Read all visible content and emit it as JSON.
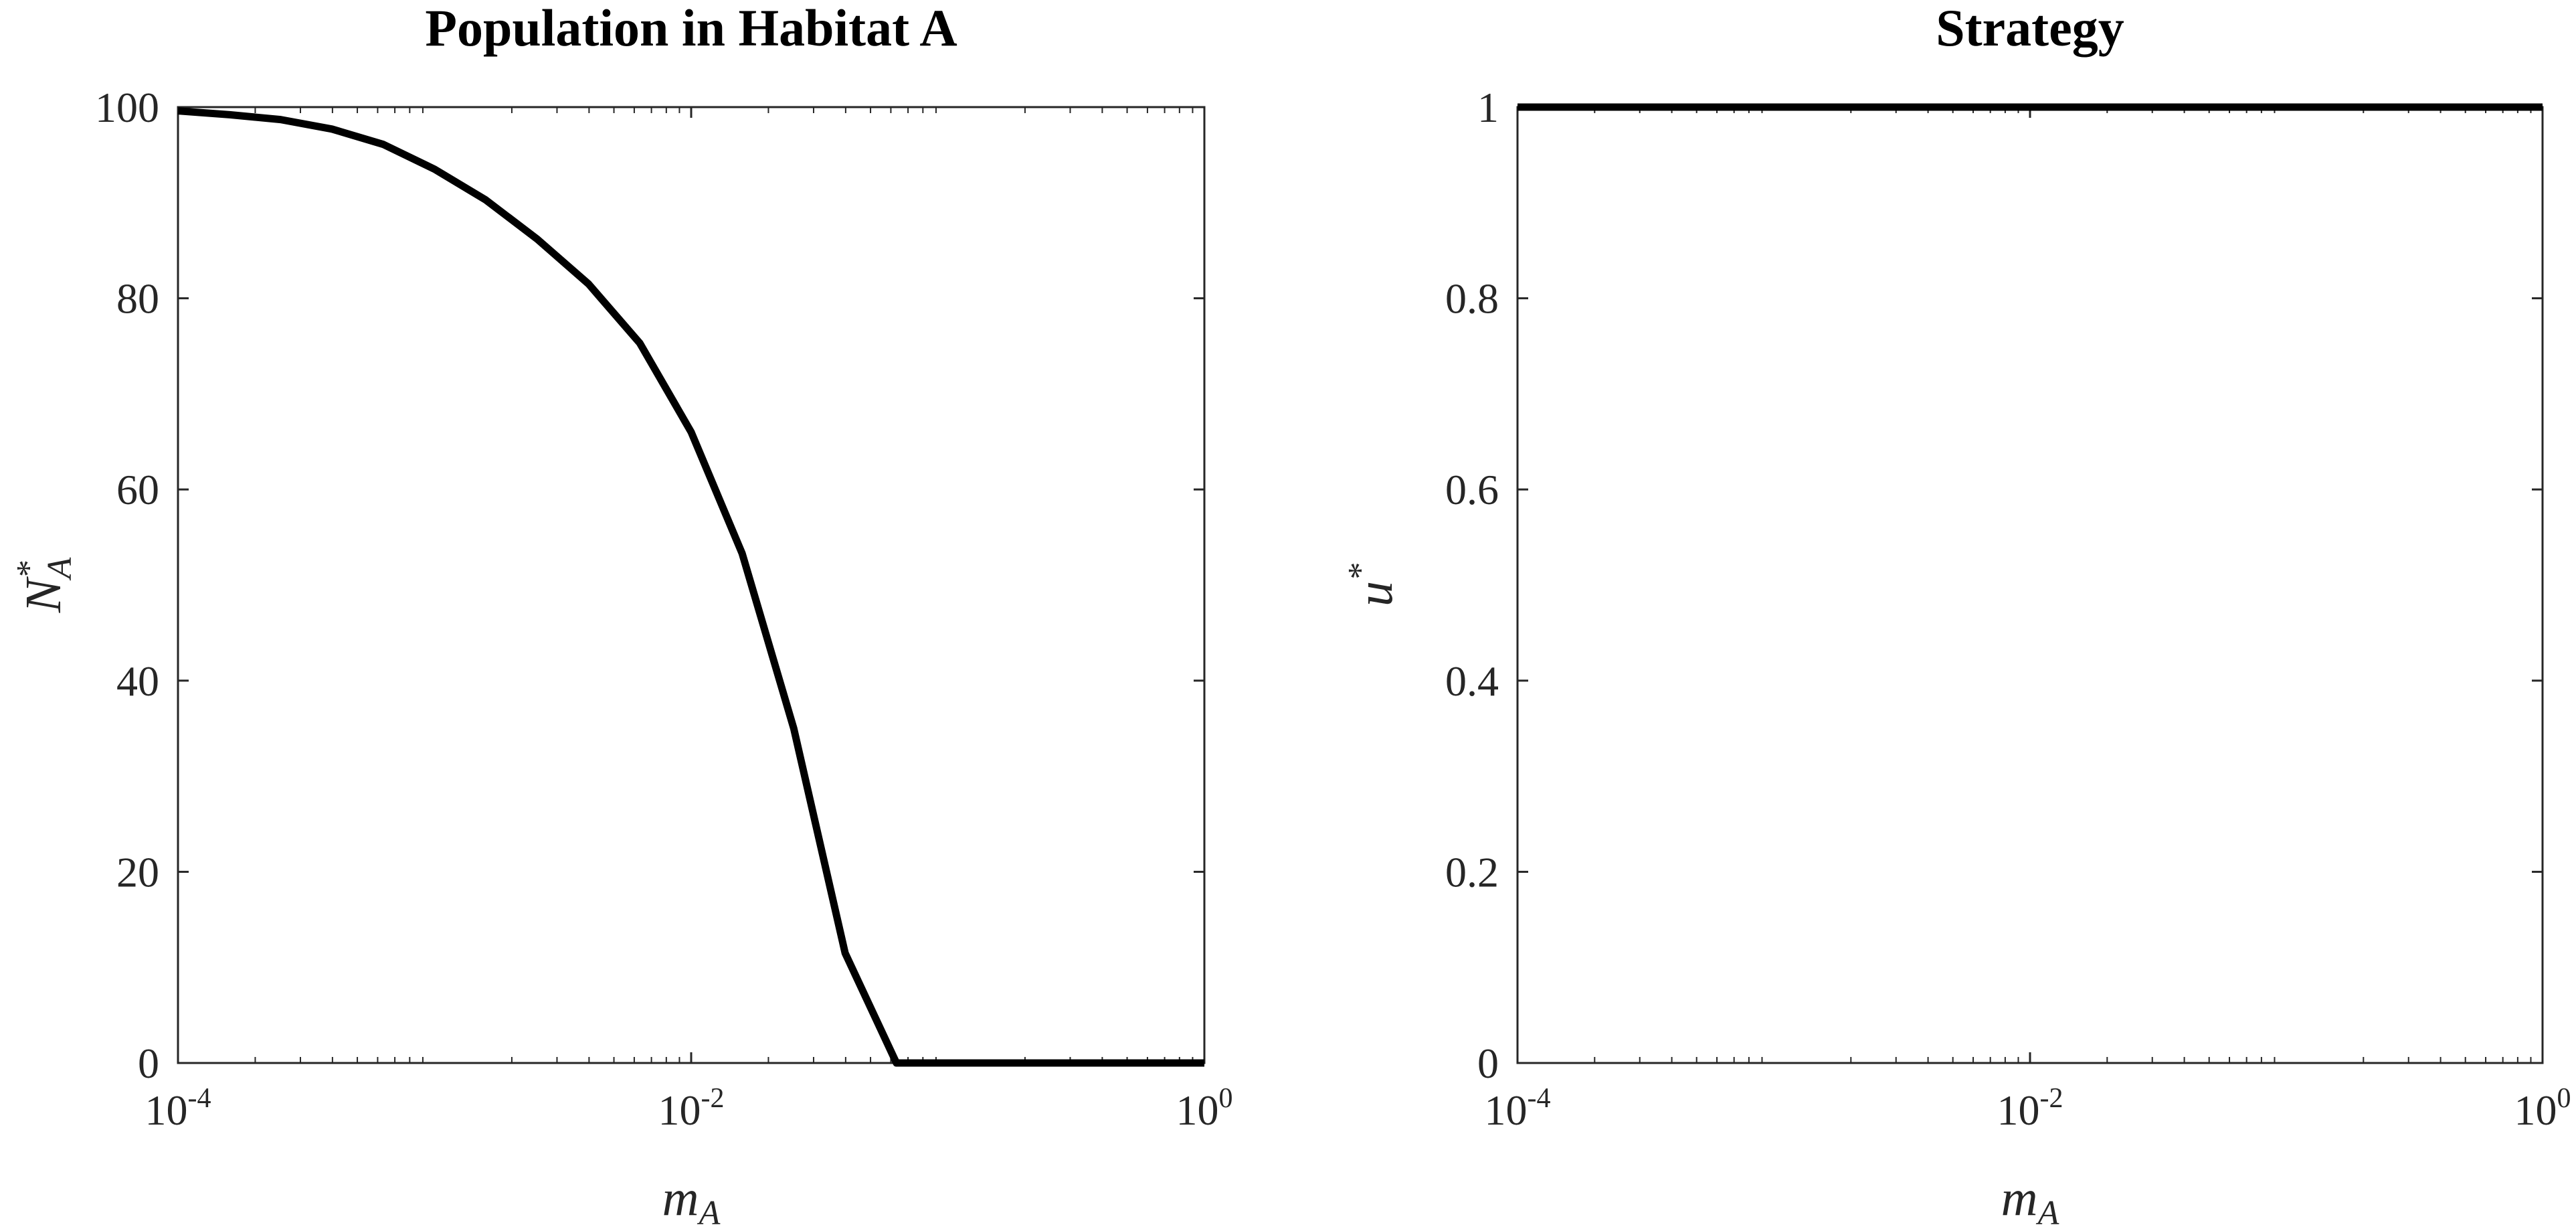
{
  "chart_data": [
    {
      "type": "line",
      "title": "Population in Habitat A",
      "xlabel": {
        "base": "m",
        "sub": "A"
      },
      "ylabel": {
        "base": "N",
        "sup": "*",
        "sub": "A"
      },
      "xscale": "log",
      "xlim": [
        0.0001,
        1
      ],
      "ylim": [
        0,
        100
      ],
      "grid": false,
      "xticks": [
        {
          "value": 0.0001,
          "base": "10",
          "exp": "-4"
        },
        {
          "value": 0.01,
          "base": "10",
          "exp": "-2"
        },
        {
          "value": 1,
          "base": "10",
          "exp": "0"
        }
      ],
      "yticks": [
        {
          "value": 0,
          "label": "0"
        },
        {
          "value": 20,
          "label": "20"
        },
        {
          "value": 40,
          "label": "40"
        },
        {
          "value": 60,
          "label": "60"
        },
        {
          "value": 80,
          "label": "80"
        },
        {
          "value": 100,
          "label": "100"
        }
      ],
      "series": [
        {
          "color": "#000000",
          "x": [
            0.0001,
            0.000159,
            0.000251,
            0.000398,
            0.000631,
            0.001,
            0.00158,
            0.00251,
            0.00398,
            0.00631,
            0.01,
            0.0158,
            0.0251,
            0.0398,
            0.0631,
            0.1,
            0.158,
            0.251,
            0.398,
            0.631,
            1
          ],
          "y": [
            99.6,
            99.2,
            98.7,
            97.7,
            96.1,
            93.5,
            90.3,
            86.2,
            81.5,
            75.3,
            66,
            53.3,
            35,
            11.5,
            0,
            0,
            0,
            0,
            0,
            0,
            0
          ]
        }
      ]
    },
    {
      "type": "line",
      "title": "Strategy",
      "xlabel": {
        "base": "m",
        "sub": "A"
      },
      "ylabel": {
        "base": "u",
        "sup": "*",
        "sub": ""
      },
      "xscale": "log",
      "xlim": [
        0.0001,
        1
      ],
      "ylim": [
        0,
        1
      ],
      "grid": false,
      "xticks": [
        {
          "value": 0.0001,
          "base": "10",
          "exp": "-4"
        },
        {
          "value": 0.01,
          "base": "10",
          "exp": "-2"
        },
        {
          "value": 1,
          "base": "10",
          "exp": "0"
        }
      ],
      "yticks": [
        {
          "value": 0,
          "label": "0"
        },
        {
          "value": 0.2,
          "label": "0.2"
        },
        {
          "value": 0.4,
          "label": "0.4"
        },
        {
          "value": 0.6,
          "label": "0.6"
        },
        {
          "value": 0.8,
          "label": "0.8"
        },
        {
          "value": 1,
          "label": "1"
        }
      ],
      "series": [
        {
          "color": "#000000",
          "x": [
            0.0001,
            0.001,
            0.01,
            0.1,
            1
          ],
          "y": [
            1,
            1,
            1,
            1,
            1
          ]
        }
      ]
    }
  ]
}
